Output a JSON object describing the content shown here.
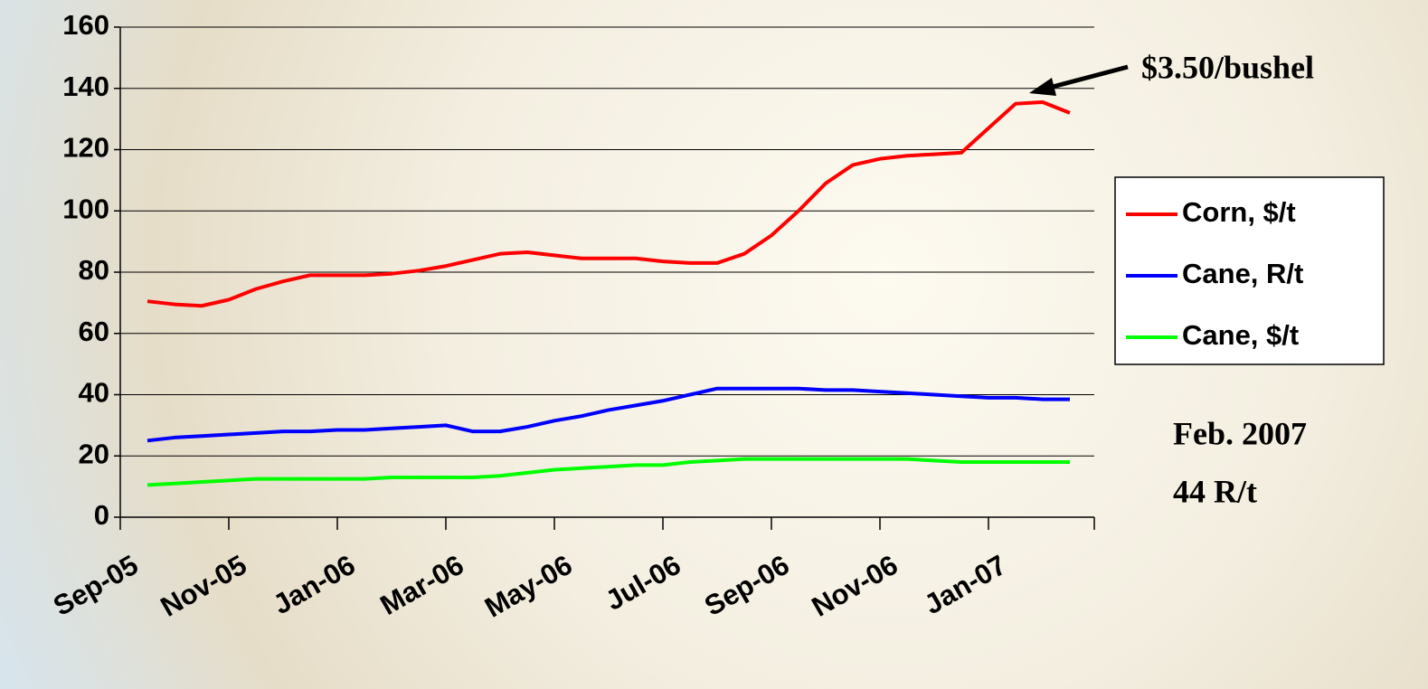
{
  "chart_data": {
    "type": "line",
    "categories": [
      "Sep-05",
      null,
      null,
      null,
      "Nov-05",
      null,
      null,
      null,
      "Jan-06",
      null,
      null,
      null,
      "Mar-06",
      null,
      null,
      null,
      "May-06",
      null,
      null,
      null,
      "Jul-06",
      null,
      null,
      null,
      "Sep-06",
      null,
      null,
      null,
      "Nov-06",
      null,
      null,
      null,
      "Jan-07",
      null,
      null
    ],
    "series": [
      {
        "name": "Corn, $/t",
        "color": "#ff0000",
        "values": [
          70.5,
          69.5,
          69,
          71,
          74.5,
          77,
          79,
          79,
          79,
          79.5,
          80.5,
          82,
          84,
          86,
          86.5,
          85.5,
          84.5,
          84.5,
          84.5,
          83.5,
          83,
          83,
          86,
          92,
          100,
          109,
          115,
          117,
          118,
          118.5,
          119,
          127,
          135,
          135.5,
          132
        ]
      },
      {
        "name": "Cane, R/t",
        "color": "#0000ff",
        "values": [
          25,
          26,
          26.5,
          27,
          27.5,
          28,
          28,
          28.5,
          28.5,
          29,
          29.5,
          30,
          28,
          28,
          29.5,
          31.5,
          33,
          35,
          36.5,
          38,
          40,
          42,
          42,
          42,
          42,
          41.5,
          41.5,
          41,
          40.5,
          40,
          39.5,
          39,
          39,
          38.5,
          38.5
        ]
      },
      {
        "name": "Cane, $/t",
        "color": "#00ff00",
        "values": [
          10.5,
          11,
          11.5,
          12,
          12.5,
          12.5,
          12.5,
          12.5,
          12.5,
          13,
          13,
          13,
          13,
          13.5,
          14.5,
          15.5,
          16,
          16.5,
          17,
          17,
          18,
          18.5,
          19,
          19,
          19,
          19,
          19,
          19,
          19,
          18.5,
          18,
          18,
          18,
          18,
          18
        ]
      }
    ],
    "ylim": [
      0,
      160
    ],
    "yticks": [
      0,
      20,
      40,
      60,
      80,
      100,
      120,
      140,
      160
    ],
    "grid": true,
    "legend": "right",
    "annotations": [
      "$3.50/bushel",
      "Feb. 2007",
      "44 R/t"
    ]
  }
}
